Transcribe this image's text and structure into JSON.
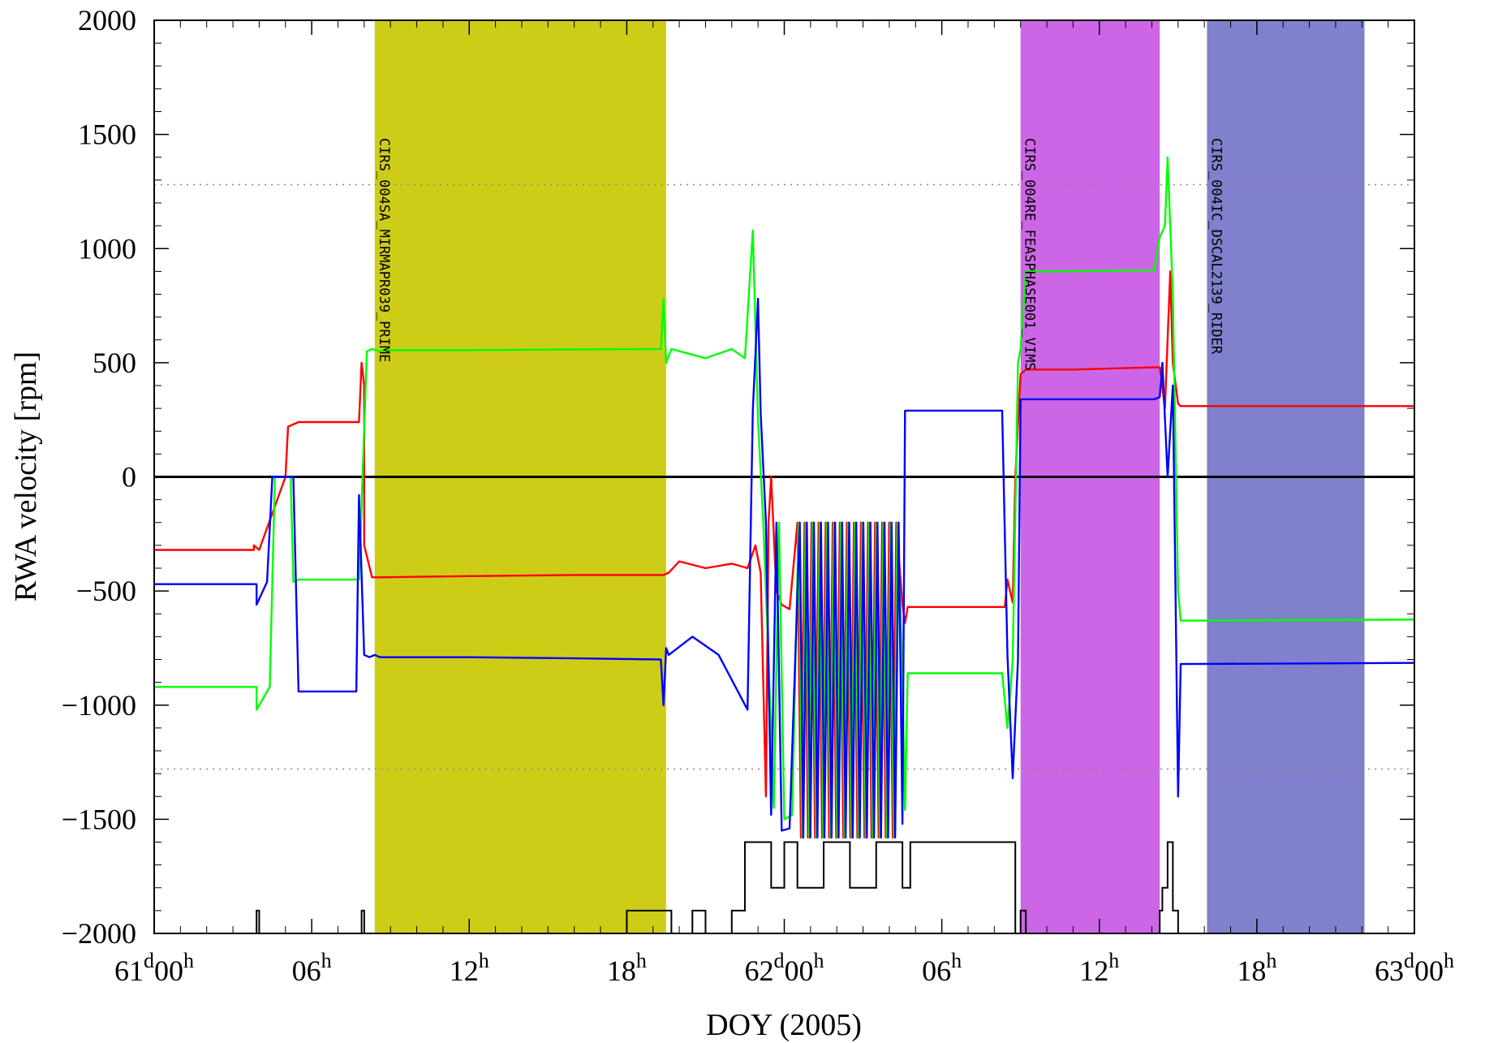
{
  "chart_data": {
    "type": "line",
    "xlabel": "DOY (2005)",
    "ylabel": "RWA velocity [rpm]",
    "xlim_hours": [
      0,
      48
    ],
    "ylim": [
      -2000,
      2000
    ],
    "yticks": [
      -2000,
      -1500,
      -1000,
      -500,
      0,
      500,
      1000,
      1500,
      2000
    ],
    "ytick_labels": [
      "−2000",
      "−1500",
      "−1000",
      "−500",
      "0",
      "500",
      "1000",
      "1500",
      "2000"
    ],
    "xticks": [
      {
        "hours": 0,
        "main": "61",
        "sup1": "d",
        "main2": "00",
        "sup2": "h"
      },
      {
        "hours": 6,
        "main": "06",
        "sup1": "h"
      },
      {
        "hours": 12,
        "main": "12",
        "sup1": "h"
      },
      {
        "hours": 18,
        "main": "18",
        "sup1": "h"
      },
      {
        "hours": 24,
        "main": "62",
        "sup1": "d",
        "main2": "00",
        "sup2": "h"
      },
      {
        "hours": 30,
        "main": "06",
        "sup1": "h"
      },
      {
        "hours": 36,
        "main": "12",
        "sup1": "h"
      },
      {
        "hours": 42,
        "main": "18",
        "sup1": "h"
      },
      {
        "hours": 48,
        "main": "63",
        "sup1": "d",
        "main2": "00",
        "sup2": "h"
      }
    ],
    "reference_lines": [
      {
        "y": 0,
        "style": "solid",
        "color": "#000000"
      },
      {
        "y": 1280,
        "style": "dotted",
        "color": "#a08080"
      },
      {
        "y": -1280,
        "style": "dotted",
        "color": "#a08080"
      }
    ],
    "bands": [
      {
        "start": 8.4,
        "end": 19.5,
        "color": "#cdcd18",
        "label": "CIRS_004SA_MIRMAPR039_PRIME"
      },
      {
        "start": 33.0,
        "end": 38.3,
        "color": "#cc66e6",
        "label": "CIRS_004RE_FEASPHASE001_VIMS"
      },
      {
        "start": 40.1,
        "end": 46.1,
        "color": "#8080cc",
        "label": "CIRS_004IC_DSCAL2139_RIDER"
      }
    ],
    "series": [
      {
        "color": "#ff0000",
        "x": [
          0,
          3.8,
          3.8,
          4.0,
          4.0,
          5.0,
          5.1,
          5.5,
          5.6,
          5.7,
          7.8,
          7.9,
          8.0,
          8.0,
          8.3,
          8.5,
          12,
          16,
          19.4,
          19.6,
          20,
          21,
          22,
          22.6,
          22.9,
          23.1,
          23.3,
          23.4,
          23.5,
          23.7,
          23.9,
          24.2,
          28.5,
          28.6,
          28.7,
          32.4,
          32.5,
          32.7,
          32.8,
          33.0,
          33.2,
          35,
          38.1,
          38.3,
          38.5,
          38.7,
          38.8,
          39.0,
          39.1,
          48
        ],
        "y": [
          -320,
          -320,
          -300,
          -320,
          -320,
          0,
          220,
          240,
          240,
          240,
          240,
          500,
          400,
          -300,
          -440,
          -440,
          -435,
          -430,
          -430,
          -420,
          -370,
          -400,
          -380,
          -400,
          -300,
          -420,
          -1400,
          -200,
          0,
          -500,
          -560,
          -580,
          -560,
          -640,
          -570,
          -570,
          -450,
          -550,
          0,
          450,
          470,
          470,
          480,
          480,
          300,
          900,
          500,
          320,
          310,
          310
        ]
      },
      {
        "color": "#00ff00",
        "x": [
          0,
          3.9,
          3.9,
          4.4,
          4.6,
          5.2,
          5.3,
          5.5,
          7.8,
          8.1,
          8.3,
          8.6,
          8.8,
          12,
          16,
          19.3,
          19.4,
          19.5,
          19.7,
          21,
          22,
          22.5,
          22.8,
          23.0,
          23.2,
          23.4,
          23.6,
          23.8,
          24.0,
          24.3,
          28.5,
          28.6,
          28.7,
          32.3,
          32.5,
          32.7,
          32.9,
          33.0,
          33.2,
          34,
          38.1,
          38.3,
          38.5,
          38.6,
          38.8,
          39.0,
          39.1,
          48
        ],
        "y": [
          -920,
          -920,
          -1020,
          -920,
          0,
          0,
          -460,
          -450,
          -450,
          550,
          560,
          550,
          555,
          555,
          558,
          560,
          780,
          500,
          560,
          520,
          560,
          520,
          1080,
          250,
          -200,
          -800,
          -1450,
          -200,
          -1500,
          -1480,
          -860,
          -1460,
          -860,
          -860,
          -1100,
          -800,
          500,
          560,
          900,
          900,
          905,
          1050,
          1100,
          1400,
          800,
          -500,
          -630,
          -625
        ]
      },
      {
        "color": "#0000ff",
        "x": [
          0,
          3.9,
          3.9,
          4.3,
          4.5,
          5.3,
          5.5,
          5.6,
          7.7,
          7.8,
          8.0,
          8.2,
          8.4,
          8.6,
          12,
          16,
          19.3,
          19.4,
          19.5,
          19.6,
          20.5,
          21.5,
          22.6,
          22.8,
          23.0,
          23.1,
          23.3,
          23.5,
          23.7,
          23.9,
          24.2,
          28.5,
          28.6,
          28.8,
          32.3,
          32.5,
          32.7,
          32.9,
          33.0,
          33.2,
          35,
          38.1,
          38.3,
          38.4,
          38.6,
          38.8,
          38.9,
          39.0,
          39.1,
          48
        ],
        "y": [
          -470,
          -470,
          -560,
          -460,
          0,
          0,
          -940,
          -940,
          -940,
          -80,
          -780,
          -790,
          -780,
          -790,
          -790,
          -795,
          -800,
          -1000,
          -750,
          -780,
          -700,
          -780,
          -1020,
          290,
          780,
          280,
          -200,
          -1480,
          -200,
          -1550,
          -1540,
          -1520,
          290,
          290,
          290,
          -780,
          -1320,
          -800,
          340,
          340,
          340,
          340,
          350,
          500,
          0,
          400,
          -500,
          -1400,
          -820,
          -815
        ]
      }
    ],
    "overlay_counts": {
      "color": "#000000",
      "x": [
        0,
        3.9,
        4.0,
        7.9,
        8.0,
        17.9,
        18.0,
        19.6,
        19.7,
        20.5,
        21.0,
        22.0,
        22.5,
        22.9,
        23.5,
        24.0,
        24.5,
        25.5,
        26.5,
        27.5,
        28.5,
        28.8,
        29.5,
        30.5,
        31.5,
        32.3,
        32.8,
        33.0,
        33.2,
        38.3,
        38.4,
        38.6,
        38.8,
        39.0,
        48
      ],
      "y": [
        -2000,
        -1900,
        -2000,
        -1900,
        -2000,
        -2000,
        -1900,
        -1900,
        -2000,
        -1900,
        -2000,
        -1900,
        -1600,
        -1600,
        -1800,
        -1600,
        -1800,
        -1600,
        -1800,
        -1600,
        -1800,
        -1600,
        -1600,
        -1600,
        -1600,
        -1600,
        -2000,
        -1900,
        -2000,
        -1900,
        -1800,
        -1600,
        -1900,
        -2000,
        -2000
      ]
    },
    "oscillation": {
      "start": 24.5,
      "end": 28.4,
      "cycles": 14,
      "high": -200,
      "low": -1580
    }
  }
}
